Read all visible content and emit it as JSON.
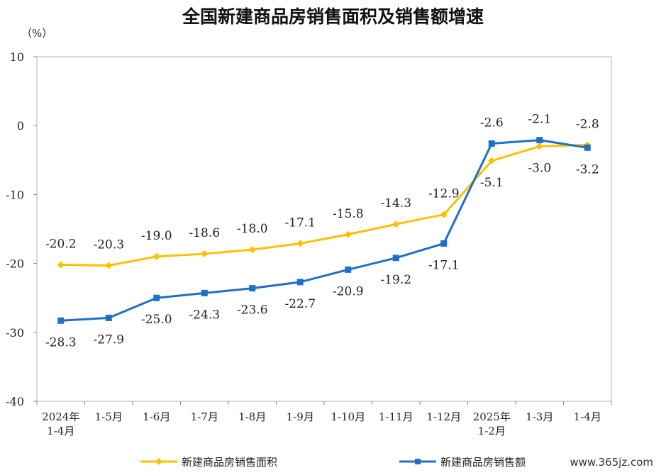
{
  "chart_data": {
    "type": "line",
    "title": "全国新建商品房销售面积及销售额增速",
    "unit_label": "（%）",
    "categories": [
      [
        "2024年",
        "1-4月"
      ],
      [
        "1-5月"
      ],
      [
        "1-6月"
      ],
      [
        "1-7月"
      ],
      [
        "1-8月"
      ],
      [
        "1-9月"
      ],
      [
        "1-10月"
      ],
      [
        "1-11月"
      ],
      [
        "1-12月"
      ],
      [
        "2025年",
        "1-2月"
      ],
      [
        "1-3月"
      ],
      [
        "1-4月"
      ]
    ],
    "ylim": [
      -40,
      10
    ],
    "yticks": [
      10,
      0,
      -10,
      -20,
      -30,
      -40
    ],
    "grid": false,
    "legend_position": "bottom",
    "series": [
      {
        "name": "新建商品房销售面积",
        "color": "#FFC000",
        "marker": "diamond",
        "values": [
          -20.2,
          -20.3,
          -19.0,
          -18.6,
          -18.0,
          -17.1,
          -15.8,
          -14.3,
          -12.9,
          -5.1,
          -3.0,
          -2.8
        ],
        "label_position": [
          "above",
          "above",
          "above",
          "above",
          "above",
          "above",
          "above",
          "above",
          "above",
          "below",
          "below",
          "above"
        ]
      },
      {
        "name": "新建商品房销售额",
        "color": "#1F6FC8",
        "marker": "square",
        "values": [
          -28.3,
          -27.9,
          -25.0,
          -24.3,
          -23.6,
          -22.7,
          -20.9,
          -19.2,
          -17.1,
          -2.6,
          -2.1,
          -3.2
        ],
        "label_position": [
          "below",
          "below",
          "below",
          "below",
          "below",
          "below",
          "below",
          "below",
          "below",
          "above",
          "above",
          "below"
        ]
      }
    ]
  },
  "watermark": "www.365jz.com"
}
